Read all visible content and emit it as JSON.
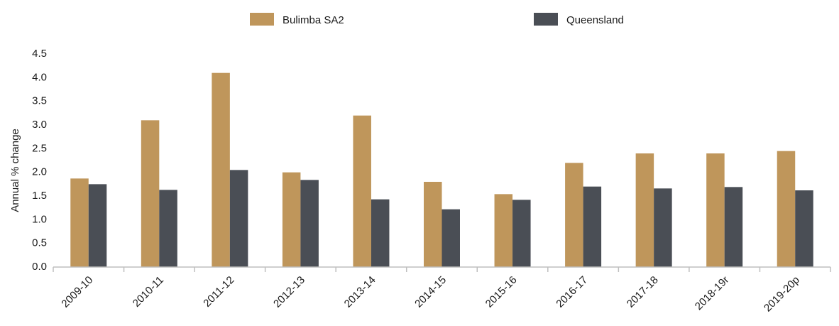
{
  "chart_data": {
    "type": "bar",
    "y_label": "Annual % change",
    "categories": [
      "2009-10",
      "2010-11",
      "2011-12",
      "2012-13",
      "2013-14",
      "2014-15",
      "2015-16",
      "2016-17",
      "2017-18",
      "2018-19r",
      "2019-20p"
    ],
    "series": [
      {
        "name": "Bulimba SA2",
        "color": "#bf965b",
        "values": [
          1.87,
          3.1,
          4.1,
          2.0,
          3.2,
          1.8,
          1.54,
          2.2,
          2.4,
          2.4,
          2.45
        ]
      },
      {
        "name": "Queensland",
        "color": "#4a4e55",
        "values": [
          1.75,
          1.63,
          2.05,
          1.84,
          1.43,
          1.22,
          1.42,
          1.7,
          1.66,
          1.69,
          1.62
        ]
      }
    ],
    "ylim": [
      0,
      4.5
    ],
    "yticks": [
      {
        "value": 0,
        "label": "0.0"
      },
      0.5,
      {
        "value": 1,
        "label": "1.0"
      },
      1.5,
      {
        "value": 2,
        "label": "2.0"
      },
      2.5,
      {
        "value": 3,
        "label": "3.0"
      },
      3.5,
      {
        "value": 4,
        "label": "4.0"
      },
      4.5
    ],
    "legend": "top",
    "grid": false
  }
}
